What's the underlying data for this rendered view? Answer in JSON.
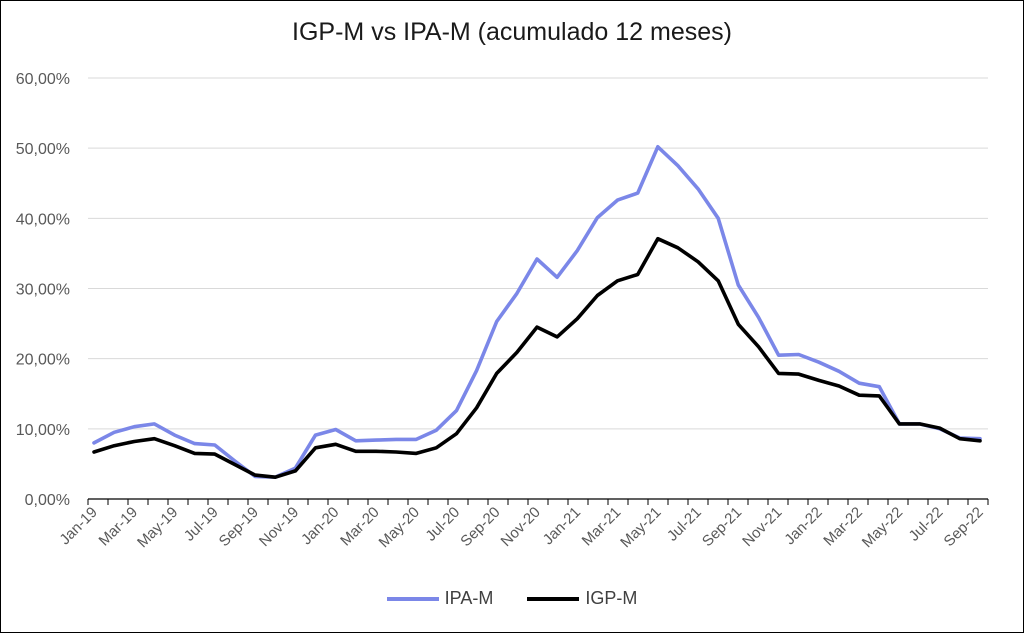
{
  "title": "IGP-M vs IPA-M (acumulado 12 meses)",
  "colors": {
    "ipa": "#7B87E8",
    "igp": "#000000",
    "grid": "#d9d9d9",
    "axis": "#000000",
    "tick_text": "#595959"
  },
  "legend": [
    {
      "key": "ipa",
      "label": "IPA-M"
    },
    {
      "key": "igp",
      "label": "IGP-M"
    }
  ],
  "chart_data": {
    "type": "line",
    "title": "IGP-M vs IPA-M (acumulado 12 meses)",
    "ylim": [
      0,
      60
    ],
    "yticks": [
      "0,00%",
      "10,00%",
      "20,00%",
      "30,00%",
      "40,00%",
      "50,00%",
      "60,00%"
    ],
    "x": [
      "Jan-19",
      "Feb-19",
      "Mar-19",
      "Apr-19",
      "May-19",
      "Jun-19",
      "Jul-19",
      "Aug-19",
      "Sep-19",
      "Oct-19",
      "Nov-19",
      "Dec-19",
      "Jan-20",
      "Feb-20",
      "Mar-20",
      "Apr-20",
      "May-20",
      "Jun-20",
      "Jul-20",
      "Aug-20",
      "Sep-20",
      "Oct-20",
      "Nov-20",
      "Dec-20",
      "Jan-21",
      "Feb-21",
      "Mar-21",
      "Apr-21",
      "May-21",
      "Jun-21",
      "Jul-21",
      "Aug-21",
      "Sep-21",
      "Oct-21",
      "Nov-21",
      "Dec-21",
      "Jan-22",
      "Feb-22",
      "Mar-22",
      "Apr-22",
      "May-22",
      "Jun-22",
      "Jul-22",
      "Aug-22",
      "Sep-22"
    ],
    "xtick_labels": [
      "Jan-19",
      "Mar-19",
      "May-19",
      "Jul-19",
      "Sep-19",
      "Nov-19",
      "Jan-20",
      "Mar-20",
      "May-20",
      "Jul-20",
      "Sep-20",
      "Nov-20",
      "Jan-21",
      "Mar-21",
      "May-21",
      "Jul-21",
      "Sep-21",
      "Nov-21",
      "Jan-22",
      "Mar-22",
      "May-22",
      "Jul-22",
      "Sep-22"
    ],
    "series": [
      {
        "name": "IPA-M",
        "values": [
          8.0,
          9.5,
          10.3,
          10.7,
          9.1,
          7.9,
          7.7,
          5.4,
          3.2,
          3.1,
          4.4,
          9.1,
          9.9,
          8.3,
          8.4,
          8.5,
          8.5,
          9.8,
          12.6,
          18.3,
          25.3,
          29.3,
          34.2,
          31.6,
          35.4,
          40.1,
          42.6,
          43.6,
          50.2,
          47.5,
          44.2,
          40.0,
          30.5,
          25.9,
          20.5,
          20.6,
          19.5,
          18.2,
          16.5,
          16.0,
          10.7,
          10.7,
          10.0,
          8.7,
          8.6
        ]
      },
      {
        "name": "IGP-M",
        "values": [
          6.7,
          7.6,
          8.2,
          8.6,
          7.6,
          6.5,
          6.4,
          4.9,
          3.4,
          3.1,
          4.0,
          7.3,
          7.8,
          6.8,
          6.8,
          6.7,
          6.5,
          7.3,
          9.3,
          13.0,
          17.9,
          20.9,
          24.5,
          23.1,
          25.7,
          29.0,
          31.1,
          32.0,
          37.1,
          35.8,
          33.8,
          31.1,
          24.9,
          21.7,
          17.9,
          17.8,
          16.9,
          16.1,
          14.8,
          14.7,
          10.7,
          10.7,
          10.1,
          8.6,
          8.3
        ]
      }
    ]
  }
}
